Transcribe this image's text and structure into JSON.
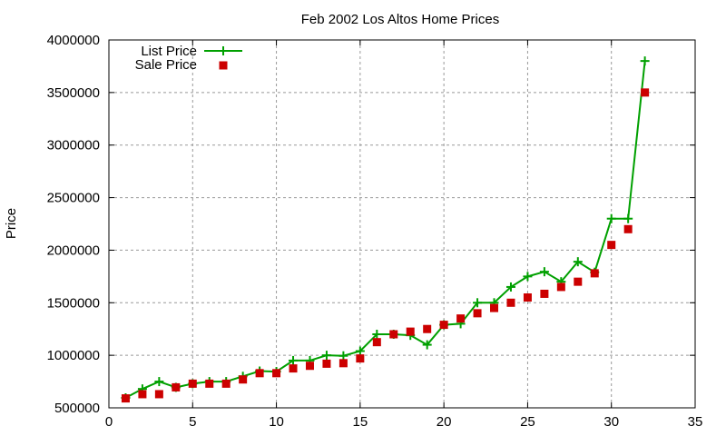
{
  "chart_data": {
    "type": "line",
    "title": "Feb 2002 Los Altos Home Prices",
    "xlabel": "",
    "ylabel": "Price",
    "xlim": [
      0,
      35
    ],
    "ylim": [
      500000,
      4000000
    ],
    "xticks": [
      0,
      5,
      10,
      15,
      20,
      25,
      30,
      35
    ],
    "yticks": [
      500000,
      1000000,
      1500000,
      2000000,
      2500000,
      3000000,
      3500000,
      4000000
    ],
    "grid": true,
    "legend_position": "top-left",
    "x": [
      1,
      2,
      3,
      4,
      5,
      6,
      7,
      8,
      9,
      10,
      11,
      12,
      13,
      14,
      15,
      16,
      17,
      18,
      19,
      20,
      21,
      22,
      23,
      24,
      25,
      26,
      27,
      28,
      29,
      30,
      31,
      32
    ],
    "series": [
      {
        "name": "List Price",
        "style": "linespoints",
        "color": "#00a000",
        "values": [
          595000,
          680000,
          750000,
          695000,
          730000,
          750000,
          750000,
          800000,
          850000,
          845000,
          950000,
          950000,
          1000000,
          995000,
          1040000,
          1200000,
          1200000,
          1190000,
          1100000,
          1290000,
          1300000,
          1500000,
          1500000,
          1650000,
          1750000,
          1795000,
          1700000,
          1890000,
          1790000,
          2300000,
          2300000,
          3800000
        ]
      },
      {
        "name": "Sale Price",
        "style": "points",
        "color": "#cc0000",
        "values": [
          590000,
          630000,
          630000,
          695000,
          730000,
          730000,
          730000,
          770000,
          830000,
          830000,
          875000,
          900000,
          920000,
          925000,
          970000,
          1125000,
          1200000,
          1225000,
          1250000,
          1290000,
          1350000,
          1400000,
          1450000,
          1500000,
          1550000,
          1585000,
          1650000,
          1700000,
          1780000,
          2050000,
          2200000,
          3500000
        ]
      }
    ]
  }
}
